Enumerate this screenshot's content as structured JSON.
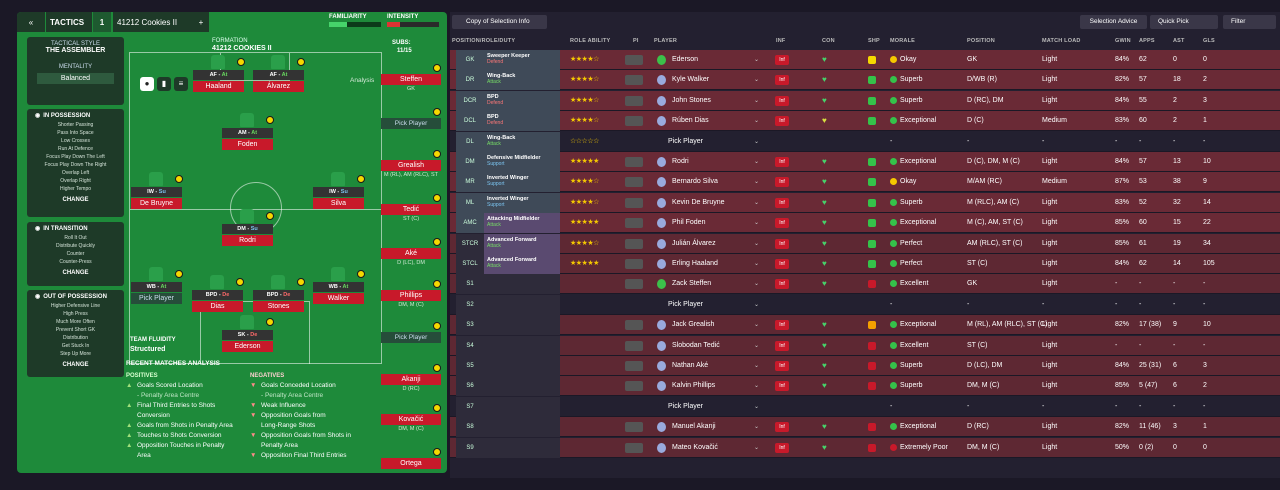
{
  "left": {
    "tactics_label": "TACTICS",
    "slot": "1",
    "tactic_name": "41212 Cookies II",
    "add": "+",
    "familiarity": "FAMILIARITY",
    "intensity": "INTENSITY",
    "style_label": "TACTICAL STYLE",
    "style": "THE ASSEMBLER",
    "mentality_label": "MENTALITY",
    "mentality": "Balanced",
    "formation_label": "FORMATION",
    "formation_name": "41212 COOKIES II",
    "subs_label": "SUBS:",
    "subs_count": "11/15",
    "analysis": "Analysis",
    "in_possession": "IN POSSESSION",
    "poss_items": [
      "Shorter Passing",
      "Pass Into Space",
      "Low Crosses",
      "Run At Defence",
      "Focus Play Down The Left",
      "Focus Play Down The Right",
      "Overlap Left",
      "Overlap Right",
      "Higher Tempo"
    ],
    "in_transition": "IN TRANSITION",
    "trans_items": [
      "Roll It Out",
      "Distribute Quickly",
      "Counter",
      "Counter-Press"
    ],
    "out_possession": "OUT OF POSSESSION",
    "out_items": [
      "Higher Defensive Line",
      "High Press",
      "Much More Often",
      "Prevent Short GK",
      "Distribution",
      "Get Stuck In",
      "Step Up More"
    ],
    "change": "CHANGE",
    "fluidity_label": "TEAM FLUIDITY",
    "fluidity": "Structured",
    "recent": "RECENT MATCHES ANALYSIS",
    "positives_label": "POSITIVES",
    "negatives_label": "NEGATIVES",
    "positives": [
      "Goals Scored Location",
      "- Penalty Area Centre",
      "Final Third Entries to Shots",
      "Conversion",
      "Goals from Shots in Penalty Area",
      "Touches to Shots Conversion",
      "Opposition Touches in Penalty",
      "Area"
    ],
    "negatives": [
      "Goals Conceded Location",
      "- Penalty Area Centre",
      "Weak Influence",
      "Opposition Goals from",
      "Long-Range Shots",
      "Opposition Goals from Shots in",
      "Penalty Area",
      "Opposition Final Third Entries"
    ],
    "pitch": [
      {
        "role": "AF",
        "duty": "At",
        "name": "Haaland"
      },
      {
        "role": "AF",
        "duty": "At",
        "name": "Álvarez"
      },
      {
        "role": "AM",
        "duty": "At",
        "name": "Foden"
      },
      {
        "role": "IW",
        "duty": "Su",
        "name": "De Bruyne"
      },
      {
        "role": "IW",
        "duty": "Su",
        "name": "Silva"
      },
      {
        "role": "DM",
        "duty": "Su",
        "name": "Rodri"
      },
      {
        "role": "WB",
        "duty": "At",
        "name": "Pick Player"
      },
      {
        "role": "BPD",
        "duty": "De",
        "name": "Dias"
      },
      {
        "role": "BPD",
        "duty": "De",
        "name": "Stones"
      },
      {
        "role": "WB",
        "duty": "At",
        "name": "Walker"
      },
      {
        "role": "SK",
        "duty": "De",
        "name": "Ederson"
      }
    ],
    "subs": [
      {
        "name": "Steffen",
        "pos": "GK"
      },
      {
        "name": "Pick Player",
        "pos": ""
      },
      {
        "name": "Grealish",
        "pos": "M (RL), AM (RLC), ST"
      },
      {
        "name": "Tedić",
        "pos": "ST (C)"
      },
      {
        "name": "Aké",
        "pos": "D (LC), DM"
      },
      {
        "name": "Phillips",
        "pos": "DM, M (C)"
      },
      {
        "name": "Pick Player",
        "pos": ""
      },
      {
        "name": "Akanji",
        "pos": "D (RC)"
      },
      {
        "name": "Kovačić",
        "pos": "DM, M (C)"
      },
      {
        "name": "Ortega",
        "pos": ""
      }
    ]
  },
  "right": {
    "copy": "Copy of Selection Info",
    "selection_advice": "Selection Advice",
    "quick_pick": "Quick Pick",
    "filter": "Filter",
    "headers": [
      "POSITION/ROLE/DUTY",
      "ROLE ABILITY",
      "PI",
      "PLAYER",
      "INF",
      "CON",
      "SHP",
      "MORALE",
      "POSITION",
      "MATCH LOAD",
      "GWIN",
      "APPS",
      "AST",
      "GLS"
    ],
    "inf_label": "Inf",
    "rows": [
      {
        "pos": "GK",
        "role": "Sweeper Keeper",
        "duty": "Defend",
        "stars": "★★★★☆",
        "player": "Ederson",
        "morale": "Okay",
        "position": "GK",
        "load": "Light",
        "gwin": "84%",
        "apps": "62",
        "ast": "0",
        "gls": "0",
        "shp": "#f5d800",
        "mc": "#f5c800"
      },
      {
        "pos": "DR",
        "role": "Wing-Back",
        "duty": "Attack",
        "stars": "★★★★☆",
        "player": "Kyle Walker",
        "morale": "Superb",
        "position": "D/WB (R)",
        "load": "Light",
        "gwin": "82%",
        "apps": "57",
        "ast": "18",
        "gls": "2",
        "shp": "#35c24a",
        "mc": "#35c24a"
      },
      {
        "pos": "DCR",
        "role": "BPD",
        "duty": "Defend",
        "stars": "★★★★☆",
        "player": "John Stones",
        "morale": "Superb",
        "position": "D (RC), DM",
        "load": "Light",
        "gwin": "84%",
        "apps": "55",
        "ast": "2",
        "gls": "3",
        "shp": "#35c24a",
        "mc": "#35c24a"
      },
      {
        "pos": "DCL",
        "role": "BPD",
        "duty": "Defend",
        "stars": "★★★★☆",
        "player": "Rúben Dias",
        "morale": "Exceptional",
        "position": "D (C)",
        "load": "Medium",
        "gwin": "83%",
        "apps": "60",
        "ast": "2",
        "gls": "1",
        "shp": "#35c24a",
        "mc": "#35c24a"
      },
      {
        "pos": "DL",
        "role": "Wing-Back",
        "duty": "Attack",
        "stars": "☆☆☆☆☆",
        "player": "Pick Player",
        "morale": "-",
        "position": "-",
        "load": "-",
        "gwin": "-",
        "apps": "-",
        "ast": "-",
        "gls": "-",
        "shp": "",
        "mc": ""
      },
      {
        "pos": "DM",
        "role": "Defensive Midfielder",
        "duty": "Support",
        "stars": "★★★★★",
        "player": "Rodri",
        "morale": "Exceptional",
        "position": "D (C), DM, M (C)",
        "load": "Light",
        "gwin": "84%",
        "apps": "57",
        "ast": "13",
        "gls": "10",
        "shp": "#35c24a",
        "mc": "#35c24a"
      },
      {
        "pos": "MR",
        "role": "Inverted Winger",
        "duty": "Support",
        "stars": "★★★★☆",
        "player": "Bernardo Silva",
        "morale": "Okay",
        "position": "M/AM (RC)",
        "load": "Medium",
        "gwin": "87%",
        "apps": "53",
        "ast": "38",
        "gls": "9",
        "shp": "#35c24a",
        "mc": "#f5c800"
      },
      {
        "pos": "ML",
        "role": "Inverted Winger",
        "duty": "Support",
        "stars": "★★★★☆",
        "player": "Kevin De Bruyne",
        "morale": "Superb",
        "position": "M (RLC), AM (C)",
        "load": "Light",
        "gwin": "83%",
        "apps": "52",
        "ast": "32",
        "gls": "14",
        "shp": "#35c24a",
        "mc": "#35c24a"
      },
      {
        "pos": "AMC",
        "role": "Attacking Midfielder",
        "duty": "Attack",
        "stars": "★★★★★",
        "player": "Phil Foden",
        "morale": "Exceptional",
        "position": "M (C), AM, ST (C)",
        "load": "Light",
        "gwin": "85%",
        "apps": "60",
        "ast": "15",
        "gls": "22",
        "shp": "#35c24a",
        "mc": "#35c24a"
      },
      {
        "pos": "STCR",
        "role": "Advanced Forward",
        "duty": "Attack",
        "stars": "★★★★☆",
        "player": "Julián Álvarez",
        "morale": "Perfect",
        "position": "AM (RLC), ST (C)",
        "load": "Light",
        "gwin": "85%",
        "apps": "61",
        "ast": "19",
        "gls": "34",
        "shp": "#35c24a",
        "mc": "#35c24a"
      },
      {
        "pos": "STCL",
        "role": "Advanced Forward",
        "duty": "Attack",
        "stars": "★★★★★",
        "player": "Erling Haaland",
        "morale": "Perfect",
        "position": "ST (C)",
        "load": "Light",
        "gwin": "84%",
        "apps": "62",
        "ast": "14",
        "gls": "105",
        "shp": "#35c24a",
        "mc": "#35c24a"
      },
      {
        "pos": "S1",
        "role": "",
        "duty": "",
        "stars": "",
        "player": "Zack Steffen",
        "morale": "Excellent",
        "position": "GK",
        "load": "Light",
        "gwin": "-",
        "apps": "-",
        "ast": "-",
        "gls": "-",
        "shp": "#c8192a",
        "mc": "#35c24a"
      },
      {
        "pos": "S2",
        "role": "",
        "duty": "",
        "stars": "",
        "player": "Pick Player",
        "morale": "-",
        "position": "-",
        "load": "-",
        "gwin": "-",
        "apps": "-",
        "ast": "-",
        "gls": "-",
        "shp": "",
        "mc": ""
      },
      {
        "pos": "S3",
        "role": "",
        "duty": "",
        "stars": "",
        "player": "Jack Grealish",
        "morale": "Exceptional",
        "position": "M (RL), AM (RLC), ST (C)",
        "load": "Light",
        "gwin": "82%",
        "apps": "17 (38)",
        "ast": "9",
        "gls": "10",
        "shp": "#f5a000",
        "mc": "#35c24a"
      },
      {
        "pos": "S4",
        "role": "",
        "duty": "",
        "stars": "",
        "player": "Slobodan Tedić",
        "morale": "Excellent",
        "position": "ST (C)",
        "load": "Light",
        "gwin": "-",
        "apps": "-",
        "ast": "-",
        "gls": "-",
        "shp": "#c8192a",
        "mc": "#35c24a"
      },
      {
        "pos": "S5",
        "role": "",
        "duty": "",
        "stars": "",
        "player": "Nathan Aké",
        "morale": "Superb",
        "position": "D (LC), DM",
        "load": "Light",
        "gwin": "84%",
        "apps": "25 (31)",
        "ast": "6",
        "gls": "3",
        "shp": "#c8192a",
        "mc": "#35c24a"
      },
      {
        "pos": "S6",
        "role": "",
        "duty": "",
        "stars": "",
        "player": "Kalvin Phillips",
        "morale": "Superb",
        "position": "DM, M (C)",
        "load": "Light",
        "gwin": "85%",
        "apps": "5 (47)",
        "ast": "6",
        "gls": "2",
        "shp": "#c8192a",
        "mc": "#35c24a"
      },
      {
        "pos": "S7",
        "role": "",
        "duty": "",
        "stars": "",
        "player": "Pick Player",
        "morale": "-",
        "position": "-",
        "load": "-",
        "gwin": "-",
        "apps": "-",
        "ast": "-",
        "gls": "-",
        "shp": "",
        "mc": ""
      },
      {
        "pos": "S8",
        "role": "",
        "duty": "",
        "stars": "",
        "player": "Manuel Akanji",
        "morale": "Exceptional",
        "position": "D (RC)",
        "load": "Light",
        "gwin": "82%",
        "apps": "11 (46)",
        "ast": "3",
        "gls": "1",
        "shp": "#c8192a",
        "mc": "#35c24a"
      },
      {
        "pos": "S9",
        "role": "",
        "duty": "",
        "stars": "",
        "player": "Mateo Kovačić",
        "morale": "Extremely Poor",
        "position": "DM, M (C)",
        "load": "Light",
        "gwin": "50%",
        "apps": "0 (2)",
        "ast": "0",
        "gls": "0",
        "shp": "#c8192a",
        "mc": "#c8192a"
      }
    ]
  }
}
